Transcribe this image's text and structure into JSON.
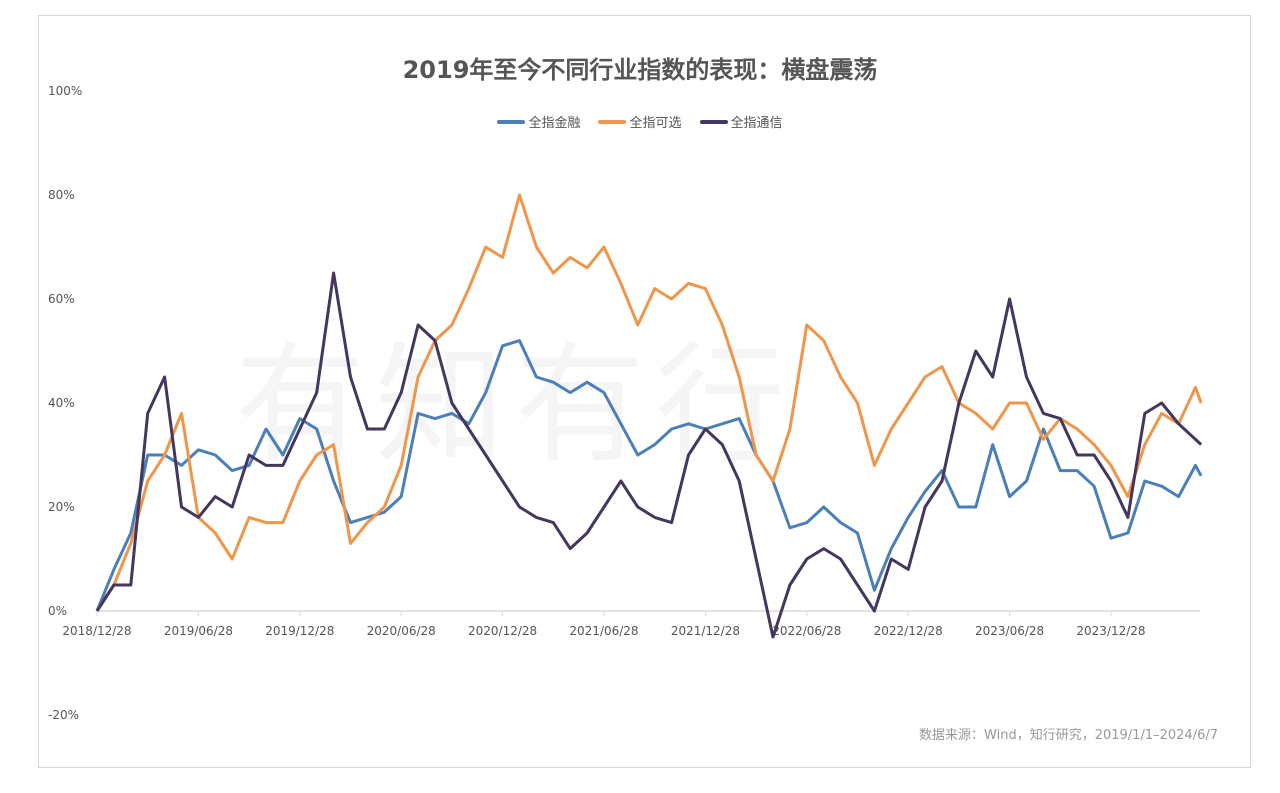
{
  "chart_data": {
    "type": "line",
    "title": "2019年至今不同行业指数的表现：横盘震荡",
    "xlabel": "",
    "ylabel": "",
    "ylim": [
      -20,
      100
    ],
    "yticks": [
      -20,
      0,
      20,
      40,
      60,
      80,
      100
    ],
    "ytick_labels": [
      "-20%",
      "0%",
      "20%",
      "40%",
      "60%",
      "80%",
      "100%"
    ],
    "xtick_labels": [
      "2018/12/28",
      "2019/06/28",
      "2019/12/28",
      "2020/06/28",
      "2020/12/28",
      "2021/06/28",
      "2021/12/28",
      "2022/06/28",
      "2022/12/28",
      "2023/06/28",
      "2023/12/28"
    ],
    "grid": false,
    "legend_position": "top-center",
    "x": [
      "2018-12",
      "2019-01",
      "2019-02",
      "2019-03",
      "2019-04",
      "2019-05",
      "2019-06",
      "2019-07",
      "2019-08",
      "2019-09",
      "2019-10",
      "2019-11",
      "2019-12",
      "2020-01",
      "2020-02",
      "2020-03",
      "2020-04",
      "2020-05",
      "2020-06",
      "2020-07",
      "2020-08",
      "2020-09",
      "2020-10",
      "2020-11",
      "2020-12",
      "2021-01",
      "2021-02",
      "2021-03",
      "2021-04",
      "2021-05",
      "2021-06",
      "2021-07",
      "2021-08",
      "2021-09",
      "2021-10",
      "2021-11",
      "2021-12",
      "2022-01",
      "2022-02",
      "2022-03",
      "2022-04",
      "2022-05",
      "2022-06",
      "2022-07",
      "2022-08",
      "2022-09",
      "2022-10",
      "2022-11",
      "2022-12",
      "2023-01",
      "2023-02",
      "2023-03",
      "2023-04",
      "2023-05",
      "2023-06",
      "2023-07",
      "2023-08",
      "2023-09",
      "2023-10",
      "2023-11",
      "2023-12",
      "2024-01",
      "2024-02",
      "2024-03",
      "2024-04",
      "2024-05",
      "2024-06-07"
    ],
    "series": [
      {
        "name": "全指金融",
        "color": "#4a7fb9",
        "values": [
          0,
          8,
          15,
          30,
          30,
          28,
          31,
          30,
          27,
          28,
          35,
          30,
          37,
          35,
          25,
          17,
          18,
          19,
          22,
          38,
          37,
          38,
          36,
          42,
          51,
          52,
          45,
          44,
          42,
          44,
          42,
          36,
          30,
          32,
          35,
          36,
          35,
          36,
          37,
          30,
          25,
          16,
          17,
          20,
          17,
          15,
          4,
          12,
          18,
          23,
          27,
          20,
          20,
          32,
          22,
          25,
          35,
          27,
          27,
          24,
          14,
          15,
          25,
          24,
          22,
          28,
          26
        ]
      },
      {
        "name": "全指可选",
        "color": "#f0964a",
        "values": [
          0,
          5,
          13,
          25,
          30,
          38,
          18,
          15,
          10,
          18,
          17,
          17,
          25,
          30,
          32,
          13,
          17,
          20,
          28,
          45,
          52,
          55,
          62,
          70,
          68,
          80,
          70,
          65,
          68,
          66,
          70,
          63,
          55,
          62,
          60,
          63,
          62,
          55,
          45,
          30,
          25,
          35,
          55,
          52,
          45,
          40,
          28,
          35,
          40,
          45,
          47,
          40,
          38,
          35,
          40,
          40,
          33,
          37,
          35,
          32,
          28,
          22,
          32,
          38,
          36,
          43,
          40
        ]
      },
      {
        "name": "全指通信",
        "color": "#45365e",
        "values": [
          0,
          5,
          5,
          38,
          45,
          20,
          18,
          22,
          20,
          30,
          28,
          28,
          35,
          42,
          65,
          45,
          35,
          35,
          42,
          55,
          52,
          40,
          35,
          30,
          25,
          20,
          18,
          17,
          12,
          15,
          20,
          25,
          20,
          18,
          17,
          30,
          35,
          32,
          25,
          10,
          -5,
          5,
          10,
          12,
          10,
          5,
          0,
          10,
          8,
          20,
          25,
          40,
          50,
          45,
          60,
          45,
          38,
          37,
          30,
          30,
          25,
          18,
          38,
          40,
          36,
          33,
          32
        ]
      }
    ]
  },
  "watermark": "有知有行",
  "source_note": "数据来源：Wind，知行研究，2019/1/1–2024/6/7"
}
